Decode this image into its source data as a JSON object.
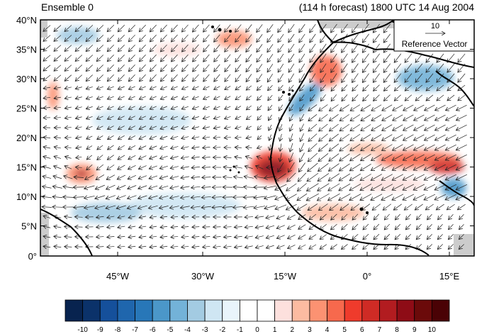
{
  "header": {
    "left_title": "Ensemble 0",
    "right_title": "(114 h forecast) 1800 UTC 14 Aug 2004"
  },
  "reference_vector": {
    "magnitude_label": "10",
    "label": "Reference Vector"
  },
  "axes": {
    "lat_labels": [
      "40°N",
      "35°N",
      "30°N",
      "25°N",
      "20°N",
      "15°N",
      "10°N",
      "5°N",
      "0°"
    ],
    "lon_labels": [
      "45°W",
      "30°W",
      "15°W",
      "0°",
      "15°E"
    ]
  },
  "colorbar": {
    "labels": [
      "-10",
      "-9",
      "-8",
      "-7",
      "-6",
      "-5",
      "-4",
      "-3",
      "-2",
      "-1",
      "0",
      "1",
      "2",
      "3",
      "4",
      "5",
      "6",
      "7",
      "8",
      "9",
      "10"
    ],
    "colors": [
      "#08234f",
      "#0b326a",
      "#15509b",
      "#1f66ad",
      "#2877b8",
      "#4b97c9",
      "#73b2d8",
      "#a3cbe2",
      "#cfe6f3",
      "#e9f4fb",
      "#ffffff",
      "#ffffff",
      "#fde0dd",
      "#fcbba1",
      "#fc9272",
      "#f7694d",
      "#ef3b2c",
      "#cf2b25",
      "#b21c20",
      "#8e0c16",
      "#6b0a0a",
      "#4a0205"
    ]
  },
  "colors": {
    "land_gray": "#cccccc",
    "coast": "#000000"
  }
}
